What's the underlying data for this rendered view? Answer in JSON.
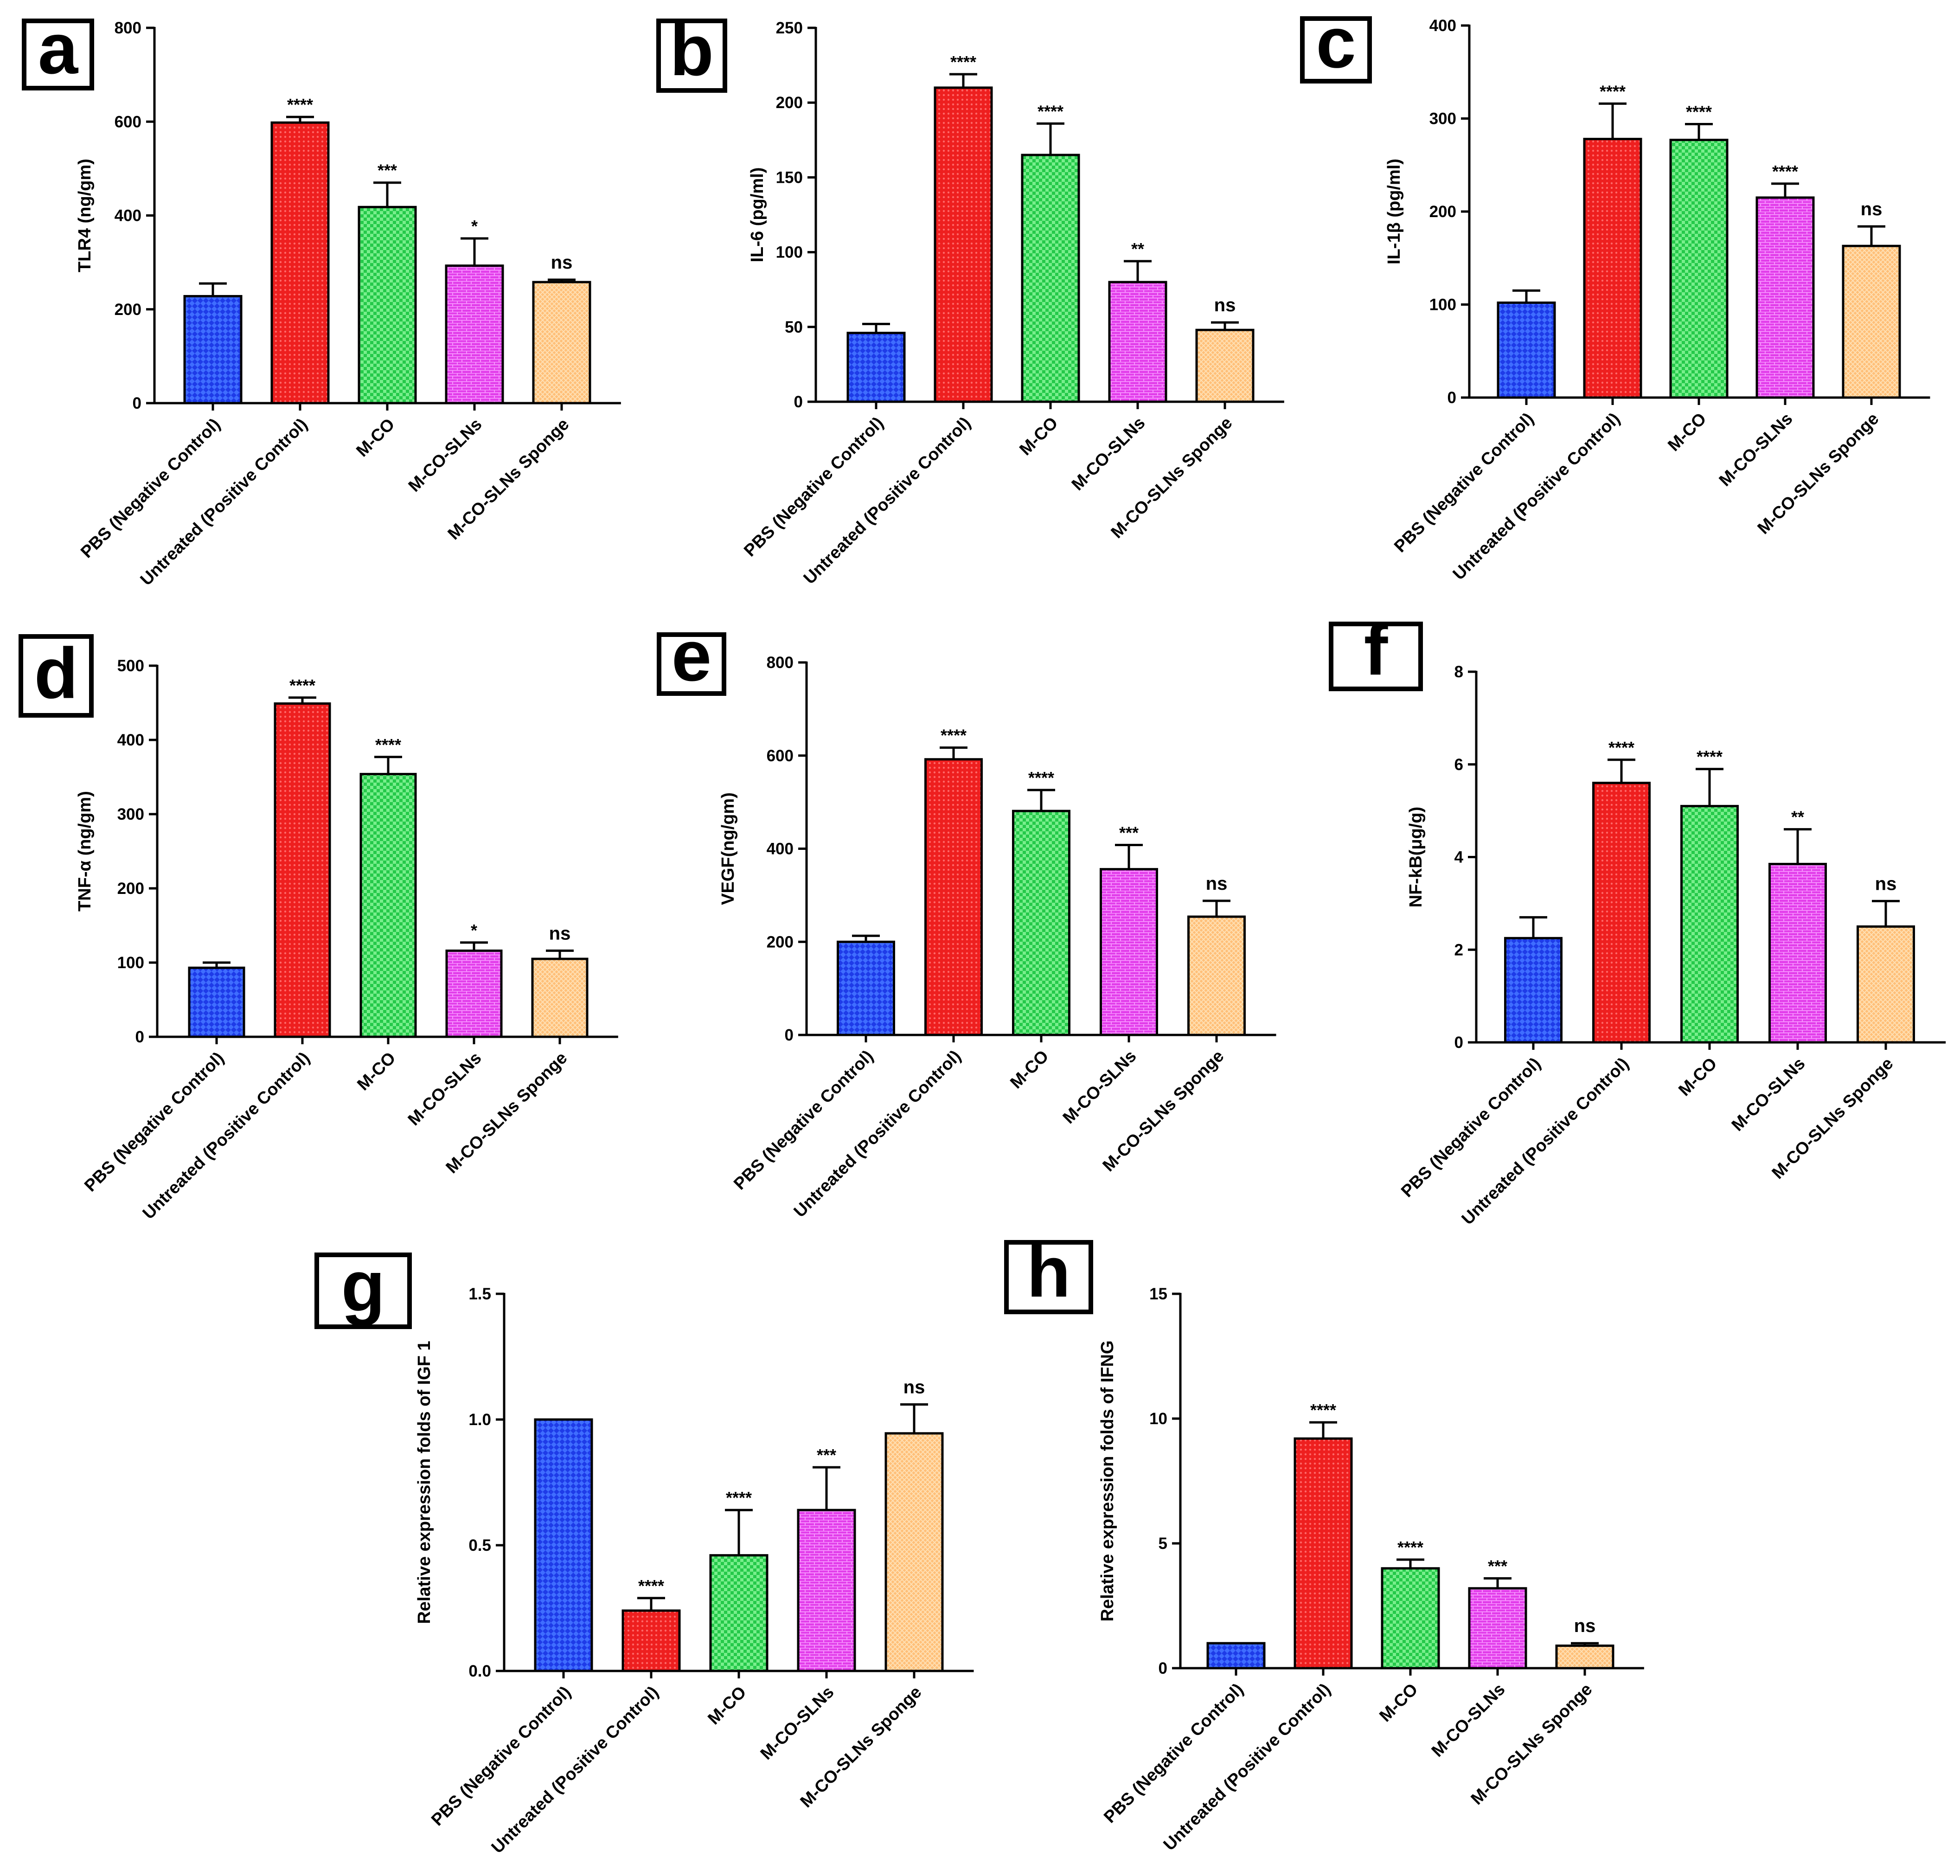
{
  "chart_data": [
    {
      "id": "a",
      "type": "bar",
      "panel_label": "a",
      "title": "",
      "ylabel": "TLR4 (ng/gm)",
      "ylim": [
        0,
        800
      ],
      "yticks": [
        "0",
        "200",
        "400",
        "600",
        "800"
      ],
      "categories": [
        "PBS (Negative Control)",
        "Untreated (Positive Control)",
        "M-CO",
        "M-CO-SLNs",
        "M-CO-SLNs Sponge"
      ],
      "values": [
        228,
        598,
        418,
        293,
        258
      ],
      "errors": [
        27,
        12,
        52,
        58,
        5
      ],
      "significance": [
        "",
        "****",
        "***",
        "*",
        "ns"
      ]
    },
    {
      "id": "b",
      "type": "bar",
      "panel_label": "b",
      "title": "",
      "ylabel": "IL-6 (pg/ml)",
      "ylim": [
        0,
        250
      ],
      "yticks": [
        "0",
        "50",
        "100",
        "150",
        "200",
        "250"
      ],
      "categories": [
        "PBS (Negative Control)",
        "Untreated (Positive Control)",
        "M-CO",
        "M-CO-SLNs",
        "M-CO-SLNs Sponge"
      ],
      "values": [
        46,
        210,
        165,
        80,
        48
      ],
      "errors": [
        6,
        9,
        21,
        14,
        5
      ],
      "significance": [
        "",
        "****",
        "****",
        "**",
        "ns"
      ]
    },
    {
      "id": "c",
      "type": "bar",
      "panel_label": "c",
      "title": "",
      "ylabel": "IL-1β (pg/ml)",
      "ylim": [
        0,
        400
      ],
      "yticks": [
        "0",
        "100",
        "200",
        "300",
        "400"
      ],
      "categories": [
        "PBS (Negative Control)",
        "Untreated (Positive Control)",
        "M-CO",
        "M-CO-SLNs",
        "M-CO-SLNs Sponge"
      ],
      "values": [
        102,
        278,
        277,
        215,
        163
      ],
      "errors": [
        13,
        38,
        17,
        15,
        21
      ],
      "significance": [
        "",
        "****",
        "****",
        "****",
        "ns"
      ]
    },
    {
      "id": "d",
      "type": "bar",
      "panel_label": "d",
      "title": "",
      "ylabel": "TNF-α (ng/gm)",
      "ylim": [
        0,
        500
      ],
      "yticks": [
        "0",
        "100",
        "200",
        "300",
        "400",
        "500"
      ],
      "categories": [
        "PBS (Negative Control)",
        "Untreated (Positive Control)",
        "M-CO",
        "M-CO-SLNs",
        "M-CO-SLNs Sponge"
      ],
      "values": [
        93,
        449,
        354,
        116,
        105
      ],
      "errors": [
        7,
        8,
        23,
        11,
        11
      ],
      "significance": [
        "",
        "****",
        "****",
        "*",
        "ns"
      ]
    },
    {
      "id": "e",
      "type": "bar",
      "panel_label": "e",
      "title": "",
      "ylabel": "VEGF(ng/gm)",
      "ylim": [
        0,
        800
      ],
      "yticks": [
        "0",
        "200",
        "400",
        "600",
        "800"
      ],
      "categories": [
        "PBS (Negative Control)",
        "Untreated (Positive Control)",
        "M-CO",
        "M-CO-SLNs",
        "M-CO-SLNs Sponge"
      ],
      "values": [
        200,
        592,
        481,
        356,
        254
      ],
      "errors": [
        13,
        25,
        45,
        52,
        34
      ],
      "significance": [
        "",
        "****",
        "****",
        "***",
        "ns"
      ]
    },
    {
      "id": "f",
      "type": "bar",
      "panel_label": "f",
      "title": "",
      "ylabel": "NF-kB(μg/g)",
      "ylim": [
        0,
        8
      ],
      "yticks": [
        "0",
        "2",
        "4",
        "6",
        "8"
      ],
      "categories": [
        "PBS (Negative Control)",
        "Untreated (Positive Control)",
        "M-CO",
        "M-CO-SLNs",
        "M-CO-SLNs Sponge"
      ],
      "values": [
        2.25,
        5.6,
        5.1,
        3.85,
        2.5
      ],
      "errors": [
        0.45,
        0.5,
        0.8,
        0.75,
        0.55
      ],
      "significance": [
        "",
        "****",
        "****",
        "**",
        "ns"
      ]
    },
    {
      "id": "g",
      "type": "bar",
      "panel_label": "g",
      "title": "",
      "ylabel": "Relative expression folds of IGF 1",
      "ylim": [
        0,
        1.5
      ],
      "yticks": [
        "0.0",
        "0.5",
        "1.0",
        "1.5"
      ],
      "categories": [
        "PBS (Negative Control)",
        "Untreated (Positive Control)",
        "M-CO",
        "M-CO-SLNs",
        "M-CO-SLNs Sponge"
      ],
      "values": [
        1.0,
        0.24,
        0.46,
        0.64,
        0.945
      ],
      "errors": [
        0,
        0.05,
        0.18,
        0.17,
        0.115
      ],
      "significance": [
        "",
        "****",
        "****",
        "***",
        "ns"
      ]
    },
    {
      "id": "h",
      "type": "bar",
      "panel_label": "h",
      "title": "",
      "ylabel": "Relative expression folds of IFNG",
      "ylim": [
        0,
        15
      ],
      "yticks": [
        "0",
        "5",
        "10",
        "15"
      ],
      "categories": [
        "PBS (Negative Control)",
        "Untreated (Positive Control)",
        "M-CO",
        "M-CO-SLNs",
        "M-CO-SLNs Sponge"
      ],
      "values": [
        1.0,
        9.2,
        4.0,
        3.2,
        0.9
      ],
      "errors": [
        0,
        0.65,
        0.35,
        0.4,
        0.1
      ],
      "significance": [
        "",
        "****",
        "****",
        "***",
        "ns"
      ]
    }
  ],
  "colors": {
    "bar_fills": [
      "#1e3be8",
      "#ee1f1f",
      "#25c94a",
      "#e23cea",
      "#ffbf78"
    ],
    "bar_patterns": [
      "#3f6dff",
      "#ff6868",
      "#78ee8c",
      "#f794ff",
      "#ffe0b4"
    ],
    "axis": "#000000"
  }
}
